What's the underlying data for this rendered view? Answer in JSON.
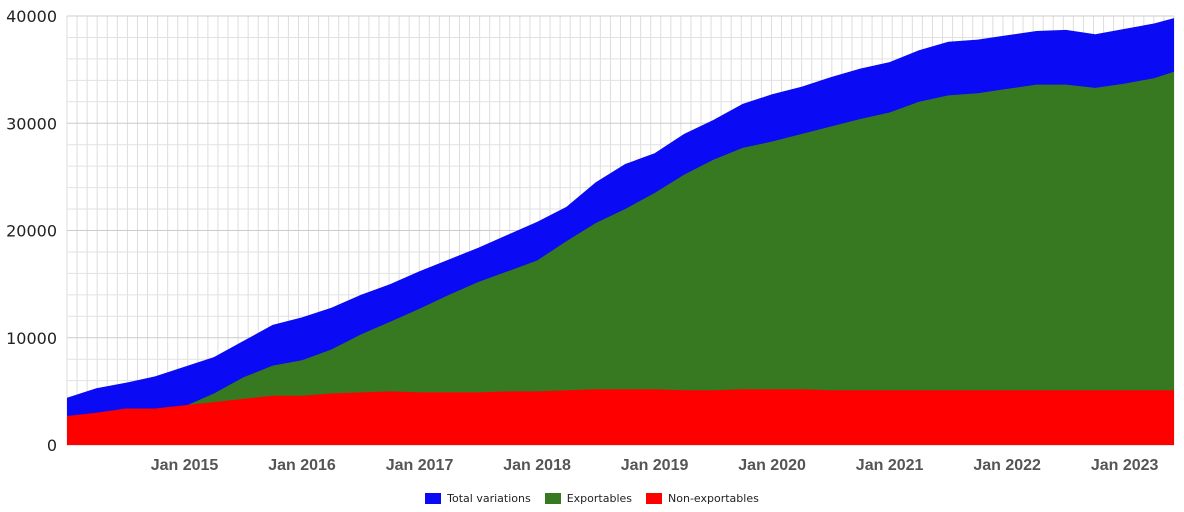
{
  "chart_data": {
    "type": "area",
    "stacked": false,
    "title": "",
    "xlabel": "",
    "ylabel": "",
    "ylim": [
      0,
      40000
    ],
    "y_ticks": [
      0,
      10000,
      20000,
      30000,
      40000
    ],
    "y_tick_labels": [
      "0",
      "10000",
      "20000",
      "30000",
      "40000"
    ],
    "x_tick_labels": [
      "Jan 2015",
      "Jan 2016",
      "Jan 2017",
      "Jan 2018",
      "Jan 2019",
      "Jan 2020",
      "Jan 2021",
      "Jan 2022",
      "Jan 2023"
    ],
    "x_tick_positions": [
      2015,
      2016,
      2017,
      2018,
      2019,
      2020,
      2021,
      2022,
      2023
    ],
    "x_range": [
      2014.0,
      2023.42
    ],
    "grid": true,
    "legend_position": "bottom-center",
    "x": [
      2014.0,
      2014.25,
      2014.5,
      2014.75,
      2015.0,
      2015.25,
      2015.5,
      2015.75,
      2016.0,
      2016.25,
      2016.5,
      2016.75,
      2017.0,
      2017.25,
      2017.5,
      2017.75,
      2018.0,
      2018.25,
      2018.5,
      2018.75,
      2019.0,
      2019.25,
      2019.5,
      2019.75,
      2020.0,
      2020.25,
      2020.5,
      2020.75,
      2021.0,
      2021.25,
      2021.5,
      2021.75,
      2022.0,
      2022.25,
      2022.5,
      2022.75,
      2023.0,
      2023.25,
      2023.42
    ],
    "series": [
      {
        "name": "Total variations",
        "color": "#0a0af5",
        "values": [
          4400,
          5300,
          5800,
          6400,
          7300,
          8200,
          9700,
          11200,
          11900,
          12800,
          14000,
          15000,
          16200,
          17300,
          18400,
          19600,
          20800,
          22200,
          24500,
          26200,
          27200,
          29000,
          30300,
          31800,
          32700,
          33400,
          34300,
          35100,
          35700,
          36800,
          37600,
          37800,
          38200,
          38600,
          38700,
          38300,
          38800,
          39300,
          39800
        ]
      },
      {
        "name": "Exportables",
        "color": "#377920",
        "values": [
          1700,
          2200,
          2400,
          3000,
          3600,
          4800,
          6300,
          7400,
          7900,
          8900,
          10300,
          11500,
          12700,
          14000,
          15200,
          16200,
          17200,
          19000,
          20700,
          22000,
          23500,
          25200,
          26600,
          27700,
          28300,
          29000,
          29700,
          30400,
          31000,
          32000,
          32600,
          32800,
          33200,
          33600,
          33600,
          33300,
          33700,
          34200,
          34800
        ]
      },
      {
        "name": "Non-exportables",
        "color": "#ff0000",
        "values": [
          2700,
          3000,
          3400,
          3400,
          3700,
          4000,
          4300,
          4600,
          4600,
          4800,
          4900,
          5000,
          4900,
          4900,
          4900,
          5000,
          5000,
          5100,
          5200,
          5200,
          5200,
          5100,
          5100,
          5200,
          5200,
          5200,
          5100,
          5100,
          5100,
          5100,
          5100,
          5100,
          5100,
          5100,
          5100,
          5100,
          5100,
          5100,
          5100
        ]
      }
    ]
  }
}
